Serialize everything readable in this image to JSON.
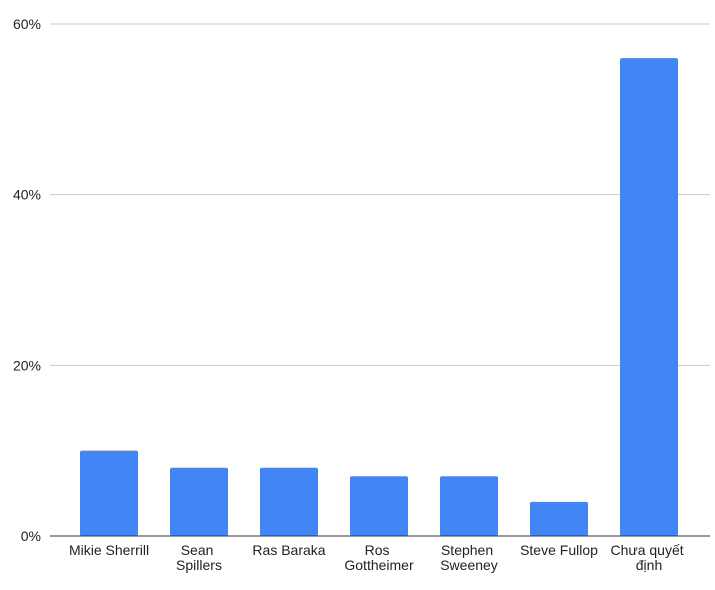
{
  "chart_data": {
    "type": "bar",
    "categories": [
      "Mikie Sherrill",
      "Sean Spillers",
      "Ras Baraka",
      "Ros Gottheimer",
      "Stephen Sweeney",
      "Steve Fullop",
      "Chưa quyết định"
    ],
    "values": [
      10,
      8,
      8,
      7,
      7,
      4,
      56
    ],
    "color": "#4285f4",
    "ylim": [
      0,
      60
    ],
    "yticks": [
      {
        "value": 0,
        "label": "0%"
      },
      {
        "value": 20,
        "label": "20%"
      },
      {
        "value": 40,
        "label": "40%"
      },
      {
        "value": 60,
        "label": "60%"
      }
    ],
    "grid": true
  }
}
